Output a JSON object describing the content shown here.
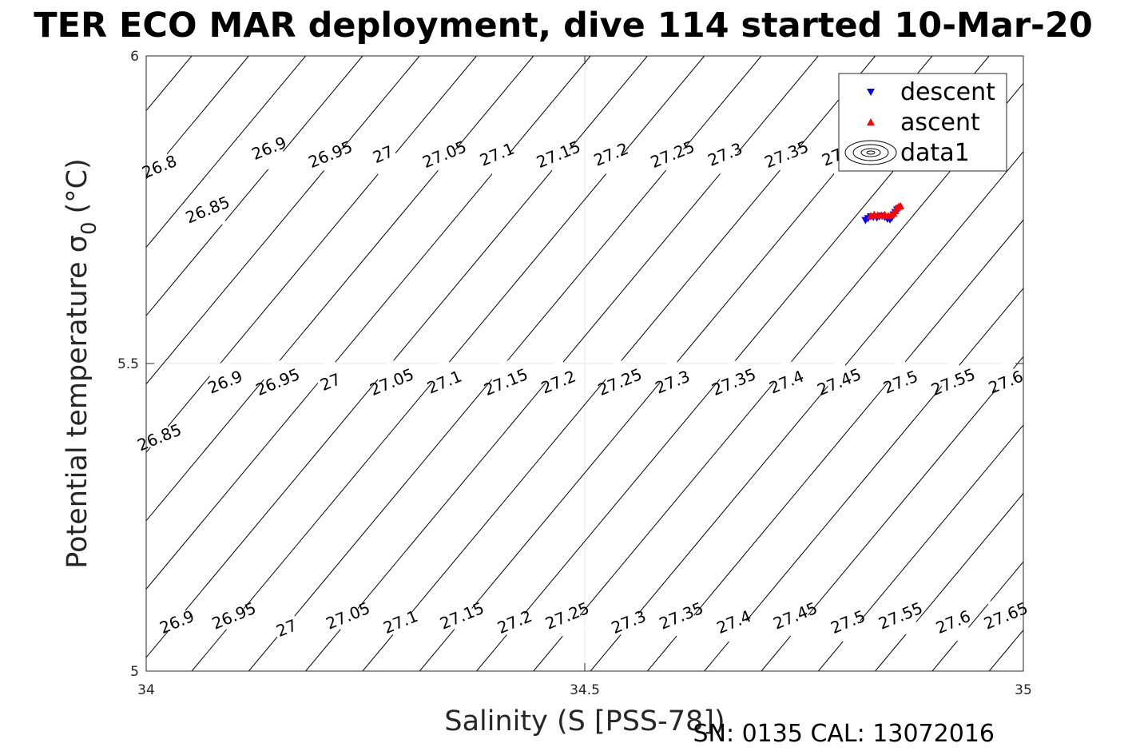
{
  "chart_data": {
    "type": "scatter",
    "title": "TER ECO MAR deployment, dive 114 started 10-Mar-20",
    "xlabel": "Salinity (S [PSS-78])",
    "ylabel_main": "Potential temperature σ",
    "ylabel_sub": "0",
    "ylabel_unit": "(°C)",
    "xlim": [
      34,
      35
    ],
    "ylim": [
      5,
      6
    ],
    "xticks": [
      34,
      34.5,
      35
    ],
    "yticks": [
      5,
      5.5,
      6
    ],
    "xtick_labels": [
      "34",
      "34.5",
      "35"
    ],
    "ytick_labels": [
      "5",
      "5.5",
      "6"
    ],
    "grid": true,
    "legend_position": "top-right",
    "contour_levels": [
      26.8,
      26.85,
      26.9,
      26.95,
      27,
      27.05,
      27.1,
      27.15,
      27.2,
      27.25,
      27.3,
      27.35,
      27.4,
      27.45,
      27.5,
      27.55,
      27.6,
      27.65
    ],
    "contour_labels": [
      {
        "t": "26.8",
        "s": 34.015,
        "th": 5.82
      },
      {
        "t": "26.85",
        "s": 34.07,
        "th": 5.75
      },
      {
        "t": "26.9",
        "s": 34.14,
        "th": 5.85
      },
      {
        "t": "26.95",
        "s": 34.21,
        "th": 5.84
      },
      {
        "t": "27",
        "s": 34.27,
        "th": 5.84
      },
      {
        "t": "27.05",
        "s": 34.34,
        "th": 5.84
      },
      {
        "t": "27.1",
        "s": 34.4,
        "th": 5.84
      },
      {
        "t": "27.15",
        "s": 34.47,
        "th": 5.84
      },
      {
        "t": "27.2",
        "s": 34.53,
        "th": 5.84
      },
      {
        "t": "27.25",
        "s": 34.6,
        "th": 5.84
      },
      {
        "t": "27.3",
        "s": 34.66,
        "th": 5.84
      },
      {
        "t": "27.35",
        "s": 34.73,
        "th": 5.84
      },
      {
        "t": "27.4",
        "s": 34.79,
        "th": 5.84
      },
      {
        "t": "26.85",
        "s": 34.015,
        "th": 5.38
      },
      {
        "t": "26.9",
        "s": 34.09,
        "th": 5.47
      },
      {
        "t": "26.95",
        "s": 34.15,
        "th": 5.47
      },
      {
        "t": "27",
        "s": 34.21,
        "th": 5.47
      },
      {
        "t": "27.05",
        "s": 34.28,
        "th": 5.47
      },
      {
        "t": "27.1",
        "s": 34.34,
        "th": 5.47
      },
      {
        "t": "27.15",
        "s": 34.41,
        "th": 5.47
      },
      {
        "t": "27.2",
        "s": 34.47,
        "th": 5.47
      },
      {
        "t": "27.25",
        "s": 34.54,
        "th": 5.47
      },
      {
        "t": "27.3",
        "s": 34.6,
        "th": 5.47
      },
      {
        "t": "27.35",
        "s": 34.67,
        "th": 5.47
      },
      {
        "t": "27.4",
        "s": 34.73,
        "th": 5.47
      },
      {
        "t": "27.45",
        "s": 34.79,
        "th": 5.47
      },
      {
        "t": "27.5",
        "s": 34.86,
        "th": 5.47
      },
      {
        "t": "27.55",
        "s": 34.92,
        "th": 5.47
      },
      {
        "t": "27.6",
        "s": 34.98,
        "th": 5.47
      },
      {
        "t": "26.9",
        "s": 34.035,
        "th": 5.08
      },
      {
        "t": "26.95",
        "s": 34.1,
        "th": 5.09
      },
      {
        "t": "27",
        "s": 34.16,
        "th": 5.07
      },
      {
        "t": "27.05",
        "s": 34.23,
        "th": 5.09
      },
      {
        "t": "27.1",
        "s": 34.29,
        "th": 5.08
      },
      {
        "t": "27.15",
        "s": 34.36,
        "th": 5.09
      },
      {
        "t": "27.2",
        "s": 34.42,
        "th": 5.08
      },
      {
        "t": "27.25",
        "s": 34.48,
        "th": 5.09
      },
      {
        "t": "27.3",
        "s": 34.55,
        "th": 5.08
      },
      {
        "t": "27.35",
        "s": 34.61,
        "th": 5.09
      },
      {
        "t": "27.4",
        "s": 34.67,
        "th": 5.08
      },
      {
        "t": "27.45",
        "s": 34.74,
        "th": 5.09
      },
      {
        "t": "27.5",
        "s": 34.8,
        "th": 5.08
      },
      {
        "t": "27.55",
        "s": 34.86,
        "th": 5.09
      },
      {
        "t": "27.6",
        "s": 34.92,
        "th": 5.08
      },
      {
        "t": "27.65",
        "s": 34.98,
        "th": 5.09
      }
    ],
    "series": [
      {
        "name": "descent",
        "marker": "triangle-down",
        "color": "#0000ff",
        "points": [
          [
            34.82,
            5.733
          ],
          [
            34.823,
            5.736
          ],
          [
            34.826,
            5.739
          ],
          [
            34.829,
            5.738
          ],
          [
            34.833,
            5.737
          ],
          [
            34.836,
            5.739
          ],
          [
            34.839,
            5.74
          ],
          [
            34.842,
            5.738
          ],
          [
            34.845,
            5.735
          ],
          [
            34.848,
            5.734
          ],
          [
            34.85,
            5.737
          ],
          [
            34.852,
            5.742
          ],
          [
            34.854,
            5.746
          ],
          [
            34.856,
            5.75
          ],
          [
            34.858,
            5.752
          ]
        ]
      },
      {
        "name": "ascent",
        "marker": "triangle-up",
        "color": "#ff0000",
        "points": [
          [
            34.826,
            5.74
          ],
          [
            34.83,
            5.742
          ],
          [
            34.834,
            5.741
          ],
          [
            34.838,
            5.741
          ],
          [
            34.842,
            5.742
          ],
          [
            34.846,
            5.74
          ],
          [
            34.849,
            5.741
          ],
          [
            34.852,
            5.744
          ],
          [
            34.854,
            5.748
          ],
          [
            34.856,
            5.753
          ],
          [
            34.858,
            5.755
          ],
          [
            34.86,
            5.756
          ]
        ]
      },
      {
        "name": "data1",
        "marker": "contour"
      }
    ],
    "footer": "SN: 0135  CAL: 13072016",
    "colors": {
      "axis": "#262626",
      "grid": "#e6e6e6",
      "contour": "#000000",
      "descent": "#0000ff",
      "ascent": "#ff0000"
    }
  }
}
